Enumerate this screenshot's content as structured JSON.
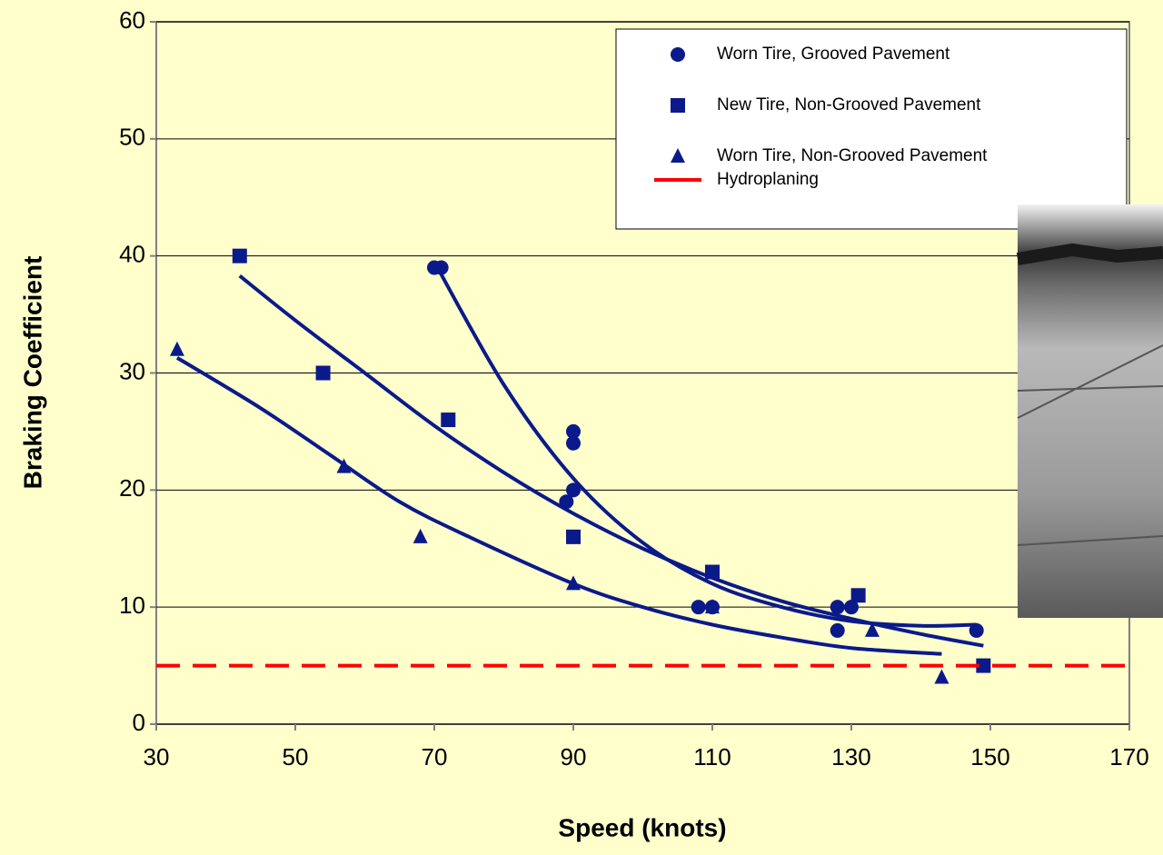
{
  "chart_data": {
    "type": "scatter",
    "xlabel": "Speed (knots)",
    "ylabel": "Braking Coefficient",
    "xlim": [
      30,
      170
    ],
    "ylim": [
      0,
      60
    ],
    "xticks": [
      30,
      50,
      70,
      90,
      110,
      130,
      150,
      170
    ],
    "yticks": [
      0,
      10,
      20,
      30,
      40,
      50,
      60
    ],
    "grid": true,
    "legend": "top-right",
    "series": [
      {
        "name": "Worn Tire, Grooved Pavement",
        "color": "#0b1a8a",
        "marker": "circle",
        "x": [
          70,
          71,
          90,
          90,
          90,
          89,
          108,
          110,
          128,
          128,
          130,
          148
        ],
        "values": [
          39,
          39,
          25,
          24,
          20,
          19,
          10,
          10,
          10,
          8,
          10,
          8
        ],
        "trend": {
          "x": [
            70,
            80,
            90,
            100,
            110,
            120,
            130,
            140,
            148
          ],
          "values": [
            39.5,
            29,
            21,
            15.5,
            12,
            10,
            8.8,
            8.4,
            8.5
          ]
        }
      },
      {
        "name": "New Tire, Non-Grooved Pavement",
        "color": "#0b1a8a",
        "marker": "square",
        "x": [
          42,
          54,
          72,
          90,
          110,
          131,
          149
        ],
        "values": [
          40,
          30,
          26,
          16,
          13,
          11,
          5
        ],
        "trend": {
          "x": [
            42,
            50,
            60,
            70,
            80,
            90,
            100,
            110,
            120,
            130,
            140,
            149
          ],
          "values": [
            38.3,
            34.5,
            30,
            25.5,
            21.5,
            18,
            15,
            12.5,
            10.5,
            9,
            7.7,
            6.7
          ]
        }
      },
      {
        "name": "Worn Tire, Non-Grooved Pavement",
        "color": "#0b1a8a",
        "marker": "triangle",
        "x": [
          33,
          57,
          68,
          90,
          110,
          133,
          143
        ],
        "values": [
          32,
          22,
          16,
          12,
          10,
          8,
          4
        ],
        "trend": {
          "x": [
            33,
            45,
            55,
            65,
            75,
            90,
            100,
            110,
            120,
            130,
            143
          ],
          "values": [
            31.3,
            27,
            23,
            19,
            16,
            12,
            10,
            8.5,
            7.4,
            6.5,
            6
          ]
        }
      }
    ],
    "reference_lines": [
      {
        "name": "Hydroplaning",
        "color": "#ff0000",
        "value": 5
      }
    ]
  }
}
